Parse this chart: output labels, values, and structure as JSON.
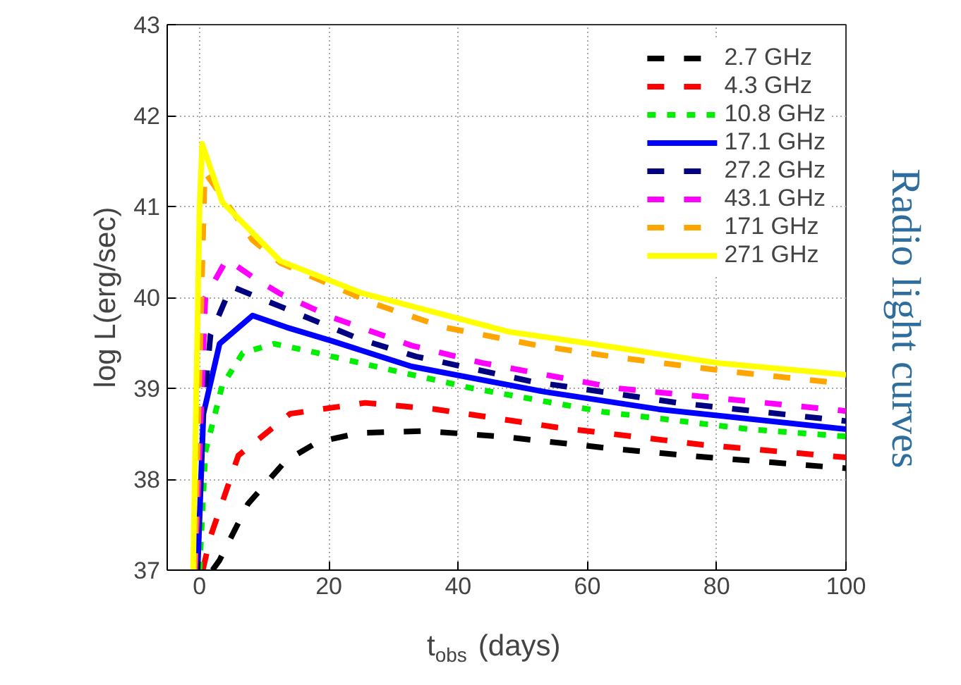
{
  "chart_data": {
    "type": "line",
    "xlabel": "t$_{obs}$ (days)",
    "ylabel": "log L(erg/sec)",
    "annotations": [
      "Radio light curves"
    ],
    "xlim": [
      -5,
      100
    ],
    "ylim": [
      37,
      43
    ],
    "xticks": [
      0,
      20,
      40,
      60,
      80,
      100
    ],
    "yticks": [
      37,
      38,
      39,
      40,
      41,
      42,
      43
    ],
    "grid": true,
    "legend": "top right",
    "series": [
      {
        "name": "2.7 GHz",
        "color": "#000000",
        "line_style": "dashed",
        "x": [
          2,
          3.1,
          7.5,
          13.3,
          18.3,
          24.8,
          35,
          46.6,
          64.7,
          77.1,
          100
        ],
        "values": [
          37,
          37.11,
          37.73,
          38.2,
          38.41,
          38.51,
          38.53,
          38.47,
          38.33,
          38.25,
          38.12
        ]
      },
      {
        "name": "4.3 GHz",
        "color": "#ff0000",
        "line_style": "dashed",
        "x": [
          0.5,
          1.7,
          6,
          14,
          25.6,
          36.5,
          55.3,
          77.7,
          100
        ],
        "values": [
          37,
          37.37,
          38.26,
          38.72,
          38.84,
          38.77,
          38.57,
          38.38,
          38.24
        ]
      },
      {
        "name": "10.8 GHz",
        "color": "#00ee00",
        "line_style": "dotted",
        "x": [
          0,
          0.9,
          3.5,
          6.7,
          11.5,
          16.9,
          27.8,
          42.2,
          62.5,
          85,
          100
        ],
        "values": [
          37,
          38.3,
          39.03,
          39.39,
          39.49,
          39.41,
          39.23,
          39.0,
          38.74,
          38.55,
          38.47
        ]
      },
      {
        "name": "17.1 GHz",
        "color": "#0000ff",
        "line_style": "solid",
        "x": [
          -0.3,
          0.6,
          3.1,
          8.2,
          13.5,
          20.5,
          32.8,
          53.5,
          71,
          100
        ],
        "values": [
          37,
          38.72,
          39.49,
          39.8,
          39.67,
          39.52,
          39.24,
          38.96,
          38.77,
          38.55
        ]
      },
      {
        "name": "27.2 GHz",
        "color": "#000080",
        "line_style": "dashed",
        "x": [
          -0.5,
          0.4,
          1.7,
          4.9,
          12.5,
          24.8,
          33.5,
          51.7,
          74,
          100
        ],
        "values": [
          37,
          38.6,
          39.59,
          40.12,
          39.9,
          39.54,
          39.35,
          39.07,
          38.84,
          38.64
        ]
      },
      {
        "name": "43.1 GHz",
        "color": "#ff00ff",
        "line_style": "dashed",
        "x": [
          -0.7,
          0.9,
          4.2,
          8.5,
          12.5,
          20.5,
          32.8,
          43.7,
          64.7,
          77.7,
          100
        ],
        "values": [
          37,
          40.0,
          40.42,
          40.21,
          40.04,
          39.78,
          39.47,
          39.28,
          39.0,
          38.91,
          38.75
        ]
      },
      {
        "name": "171 GHz",
        "color": "#ffa500",
        "line_style": "dashed",
        "x": [
          -0.8,
          0.8,
          8.2,
          12.5,
          27,
          37.9,
          52.4,
          64.7,
          81.3,
          100
        ],
        "values": [
          37,
          41.38,
          40.63,
          40.38,
          39.93,
          39.67,
          39.47,
          39.34,
          39.19,
          39.05
        ]
      },
      {
        "name": "271 GHz",
        "color": "#ffff00",
        "line_style": "solid",
        "x": [
          -1,
          -0.5,
          0,
          0.4,
          3.5,
          12.5,
          25,
          48,
          59.6,
          80,
          100
        ],
        "values": [
          37,
          39,
          41,
          41.69,
          41.05,
          40.4,
          40.05,
          39.62,
          39.5,
          39.28,
          39.15
        ]
      }
    ]
  }
}
